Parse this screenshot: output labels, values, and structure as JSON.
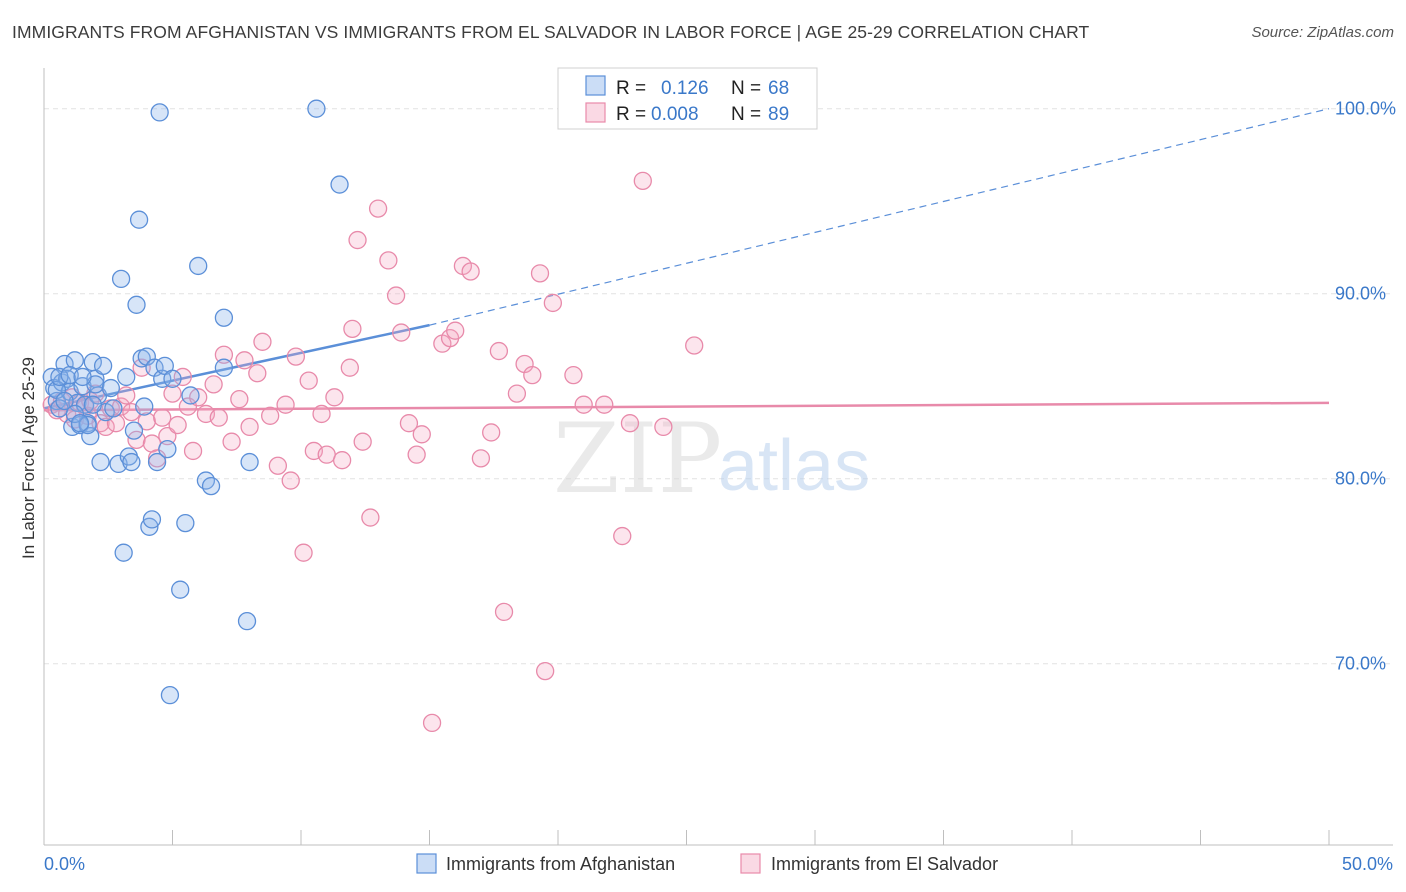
{
  "title": "IMMIGRANTS FROM AFGHANISTAN VS IMMIGRANTS FROM EL SALVADOR IN LABOR FORCE | AGE 25-29 CORRELATION CHART",
  "source": "Source: ZipAtlas.com",
  "watermark": {
    "zip": "ZIP",
    "atlas": "atlas"
  },
  "colors": {
    "afghanistan": "#5b8fd8",
    "el_salvador": "#e88aaa",
    "tick": "#3a78c9"
  },
  "legend": {
    "r_label": "R =",
    "n_label": "N =",
    "afghanistan": {
      "r": "0.126",
      "n": "68"
    },
    "el_salvador": {
      "r": "0.008",
      "n": "89"
    }
  },
  "chart_data": {
    "type": "scatter",
    "title": "IMMIGRANTS FROM AFGHANISTAN VS IMMIGRANTS FROM EL SALVADOR IN LABOR FORCE | AGE 25-29 CORRELATION CHART",
    "xlabel": "",
    "ylabel": "In Labor Force | Age 25-29",
    "xlim": [
      0,
      50
    ],
    "ylim": [
      60.2,
      102.2
    ],
    "x_tick_labels": [
      "0.0%",
      "50.0%"
    ],
    "y_ticks": [
      70,
      80,
      90,
      100
    ],
    "y_tick_labels": [
      "70.0%",
      "80.0%",
      "90.0%",
      "100.0%"
    ],
    "grid": true,
    "series": [
      {
        "name": "Immigrants from Afghanistan",
        "r": 0.126,
        "n": 68,
        "trend": {
          "x0": 0.0,
          "y0": 83.8,
          "x1": 15.0,
          "y1": 88.3,
          "dashed_to": {
            "x": 50.0,
            "y": 100.0
          }
        },
        "points": [
          [
            0.3,
            85.5
          ],
          [
            0.4,
            84.9
          ],
          [
            0.5,
            84.2
          ],
          [
            0.6,
            83.8
          ],
          [
            0.7,
            85.2
          ],
          [
            0.8,
            86.2
          ],
          [
            0.9,
            85.4
          ],
          [
            1.0,
            84.7
          ],
          [
            1.1,
            82.8
          ],
          [
            1.2,
            86.4
          ],
          [
            1.3,
            84.1
          ],
          [
            1.4,
            82.9
          ],
          [
            1.5,
            85.0
          ],
          [
            1.6,
            84.0
          ],
          [
            1.7,
            83.0
          ],
          [
            1.8,
            82.3
          ],
          [
            1.9,
            86.3
          ],
          [
            2.0,
            85.4
          ],
          [
            2.1,
            84.5
          ],
          [
            2.2,
            80.9
          ],
          [
            2.3,
            86.1
          ],
          [
            2.4,
            83.6
          ],
          [
            1.7,
            82.9
          ],
          [
            1.9,
            84.0
          ],
          [
            2.0,
            85.1
          ],
          [
            0.5,
            84.8
          ],
          [
            0.6,
            85.5
          ],
          [
            0.8,
            84.2
          ],
          [
            1.0,
            85.6
          ],
          [
            1.2,
            83.5
          ],
          [
            1.4,
            83.0
          ],
          [
            1.5,
            85.5
          ],
          [
            2.6,
            84.9
          ],
          [
            2.7,
            83.8
          ],
          [
            2.9,
            80.8
          ],
          [
            3.0,
            90.8
          ],
          [
            3.1,
            76.0
          ],
          [
            3.2,
            85.5
          ],
          [
            3.3,
            81.2
          ],
          [
            3.4,
            80.9
          ],
          [
            3.5,
            82.6
          ],
          [
            3.6,
            89.4
          ],
          [
            3.7,
            94.0
          ],
          [
            3.8,
            86.5
          ],
          [
            3.9,
            83.9
          ],
          [
            4.0,
            86.6
          ],
          [
            4.1,
            77.4
          ],
          [
            4.2,
            77.8
          ],
          [
            4.3,
            86.0
          ],
          [
            4.4,
            80.9
          ],
          [
            4.5,
            99.8
          ],
          [
            4.6,
            85.4
          ],
          [
            4.7,
            86.1
          ],
          [
            4.8,
            81.6
          ],
          [
            4.9,
            68.3
          ],
          [
            5.0,
            85.4
          ],
          [
            5.3,
            74.0
          ],
          [
            5.5,
            77.6
          ],
          [
            5.7,
            84.5
          ],
          [
            6.0,
            91.5
          ],
          [
            6.3,
            79.9
          ],
          [
            6.5,
            79.6
          ],
          [
            7.0,
            88.7
          ],
          [
            7.0,
            86.0
          ],
          [
            7.9,
            72.3
          ],
          [
            8.0,
            80.9
          ],
          [
            10.6,
            100.0
          ],
          [
            11.5,
            95.9
          ]
        ]
      },
      {
        "name": "Immigrants from El Salvador",
        "r": 0.008,
        "n": 89,
        "trend": {
          "x0": 0.0,
          "y0": 83.7,
          "x1": 50.0,
          "y1": 84.1
        },
        "points": [
          [
            0.3,
            84.0
          ],
          [
            0.5,
            83.7
          ],
          [
            0.7,
            84.2
          ],
          [
            0.9,
            83.5
          ],
          [
            1.1,
            84.4
          ],
          [
            1.2,
            83.2
          ],
          [
            1.4,
            84.1
          ],
          [
            1.6,
            83.9
          ],
          [
            1.7,
            83.4
          ],
          [
            1.8,
            84.2
          ],
          [
            2.0,
            84.6
          ],
          [
            2.2,
            83.0
          ],
          [
            2.4,
            82.8
          ],
          [
            2.6,
            83.8
          ],
          [
            2.8,
            83.0
          ],
          [
            3.0,
            83.9
          ],
          [
            3.2,
            84.5
          ],
          [
            3.4,
            83.6
          ],
          [
            3.6,
            82.1
          ],
          [
            3.8,
            86.0
          ],
          [
            4.0,
            83.1
          ],
          [
            4.2,
            81.9
          ],
          [
            4.4,
            81.1
          ],
          [
            4.6,
            83.3
          ],
          [
            4.8,
            82.3
          ],
          [
            5.0,
            84.6
          ],
          [
            5.2,
            82.9
          ],
          [
            5.4,
            85.5
          ],
          [
            5.6,
            83.9
          ],
          [
            5.8,
            81.5
          ],
          [
            6.0,
            84.4
          ],
          [
            6.3,
            83.5
          ],
          [
            6.6,
            85.1
          ],
          [
            6.8,
            83.3
          ],
          [
            7.0,
            86.7
          ],
          [
            7.3,
            82.0
          ],
          [
            7.6,
            84.3
          ],
          [
            7.8,
            86.4
          ],
          [
            8.0,
            82.8
          ],
          [
            8.3,
            85.7
          ],
          [
            8.5,
            87.4
          ],
          [
            8.8,
            83.4
          ],
          [
            9.1,
            80.7
          ],
          [
            9.4,
            84.0
          ],
          [
            9.6,
            79.9
          ],
          [
            9.8,
            86.6
          ],
          [
            10.1,
            76.0
          ],
          [
            10.3,
            85.3
          ],
          [
            10.5,
            81.5
          ],
          [
            10.8,
            83.5
          ],
          [
            11.0,
            81.3
          ],
          [
            11.3,
            84.4
          ],
          [
            11.6,
            81.0
          ],
          [
            11.9,
            86.0
          ],
          [
            12.0,
            88.1
          ],
          [
            12.2,
            92.9
          ],
          [
            12.4,
            82.0
          ],
          [
            12.7,
            77.9
          ],
          [
            13.0,
            94.6
          ],
          [
            13.4,
            91.8
          ],
          [
            13.7,
            89.9
          ],
          [
            13.9,
            87.9
          ],
          [
            14.2,
            83.0
          ],
          [
            14.5,
            81.3
          ],
          [
            14.7,
            82.4
          ],
          [
            15.1,
            66.8
          ],
          [
            15.5,
            87.3
          ],
          [
            15.8,
            87.6
          ],
          [
            16.0,
            88.0
          ],
          [
            16.3,
            91.5
          ],
          [
            16.6,
            91.2
          ],
          [
            17.0,
            81.1
          ],
          [
            17.4,
            82.5
          ],
          [
            17.7,
            86.9
          ],
          [
            17.9,
            72.8
          ],
          [
            18.4,
            84.6
          ],
          [
            18.7,
            86.2
          ],
          [
            19.0,
            85.6
          ],
          [
            19.3,
            91.1
          ],
          [
            19.5,
            69.6
          ],
          [
            19.8,
            89.5
          ],
          [
            20.6,
            85.6
          ],
          [
            21.0,
            84.0
          ],
          [
            21.8,
            84.0
          ],
          [
            22.5,
            76.9
          ],
          [
            22.8,
            83.0
          ],
          [
            23.3,
            96.1
          ],
          [
            24.1,
            82.8
          ],
          [
            25.3,
            87.2
          ]
        ]
      }
    ]
  },
  "axis": {
    "y_ticks": [
      "70.0%",
      "80.0%",
      "90.0%",
      "100.0%"
    ],
    "x_left": "0.0%",
    "x_right": "50.0%",
    "ylabel": "In Labor Force | Age 25-29"
  },
  "bottom_legend": [
    "Immigrants from Afghanistan",
    "Immigrants from El Salvador"
  ]
}
